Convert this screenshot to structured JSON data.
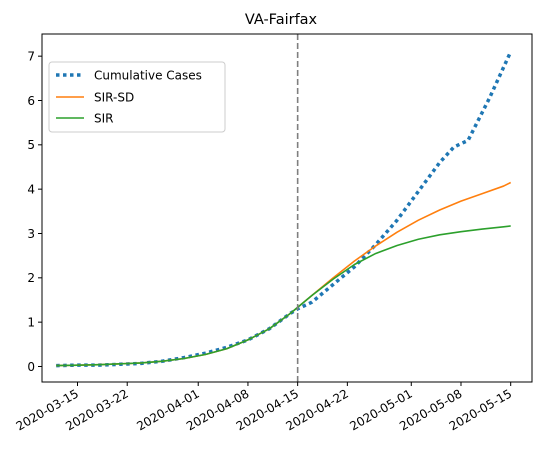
{
  "chart_data": {
    "type": "line",
    "title": "VA-Fairfax",
    "xlabel": "",
    "ylabel": "",
    "x_tick_labels": [
      "2020-03-15",
      "2020-03-22",
      "2020-04-01",
      "2020-04-08",
      "2020-04-15",
      "2020-04-22",
      "2020-05-01",
      "2020-05-08",
      "2020-05-15"
    ],
    "y_ticks": [
      0,
      1,
      2,
      3,
      4,
      5,
      6,
      7
    ],
    "xlim": [
      "2020-03-10",
      "2020-05-18"
    ],
    "ylim": [
      -0.35,
      7.5
    ],
    "grid": false,
    "legend": "top-left",
    "vline": {
      "x": "2020-04-15",
      "style": "dashed",
      "color": "#7f7f7f"
    },
    "series": [
      {
        "name": "Cumulative Cases",
        "style": "dotted",
        "color": "#1f77b4",
        "points": [
          [
            "2020-03-12",
            0.02
          ],
          [
            "2020-03-15",
            0.03
          ],
          [
            "2020-03-18",
            0.03
          ],
          [
            "2020-03-21",
            0.05
          ],
          [
            "2020-03-24",
            0.07
          ],
          [
            "2020-03-27",
            0.12
          ],
          [
            "2020-03-30",
            0.2
          ],
          [
            "2020-04-02",
            0.3
          ],
          [
            "2020-04-05",
            0.43
          ],
          [
            "2020-04-08",
            0.6
          ],
          [
            "2020-04-11",
            0.85
          ],
          [
            "2020-04-14",
            1.2
          ],
          [
            "2020-04-15",
            1.3
          ],
          [
            "2020-04-17",
            1.45
          ],
          [
            "2020-04-20",
            1.85
          ],
          [
            "2020-04-23",
            2.25
          ],
          [
            "2020-04-26",
            2.75
          ],
          [
            "2020-04-29",
            3.3
          ],
          [
            "2020-05-02",
            3.95
          ],
          [
            "2020-05-05",
            4.6
          ],
          [
            "2020-05-07",
            4.95
          ],
          [
            "2020-05-09",
            5.1
          ],
          [
            "2020-05-12",
            6.05
          ],
          [
            "2020-05-15",
            7.1
          ]
        ]
      },
      {
        "name": "SIR-SD",
        "style": "solid",
        "color": "#ff7f0e",
        "points": [
          [
            "2020-03-12",
            0.02
          ],
          [
            "2020-03-15",
            0.03
          ],
          [
            "2020-03-18",
            0.04
          ],
          [
            "2020-03-21",
            0.06
          ],
          [
            "2020-03-24",
            0.08
          ],
          [
            "2020-03-27",
            0.12
          ],
          [
            "2020-03-30",
            0.18
          ],
          [
            "2020-04-02",
            0.27
          ],
          [
            "2020-04-05",
            0.4
          ],
          [
            "2020-04-08",
            0.6
          ],
          [
            "2020-04-11",
            0.85
          ],
          [
            "2020-04-14",
            1.2
          ],
          [
            "2020-04-17",
            1.6
          ],
          [
            "2020-04-20",
            2.0
          ],
          [
            "2020-04-23",
            2.38
          ],
          [
            "2020-04-26",
            2.72
          ],
          [
            "2020-04-29",
            3.03
          ],
          [
            "2020-05-02",
            3.3
          ],
          [
            "2020-05-05",
            3.53
          ],
          [
            "2020-05-08",
            3.73
          ],
          [
            "2020-05-11",
            3.9
          ],
          [
            "2020-05-14",
            4.07
          ],
          [
            "2020-05-15",
            4.15
          ]
        ]
      },
      {
        "name": "SIR",
        "style": "solid",
        "color": "#2ca02c",
        "points": [
          [
            "2020-03-12",
            0.02
          ],
          [
            "2020-03-15",
            0.03
          ],
          [
            "2020-03-18",
            0.04
          ],
          [
            "2020-03-21",
            0.06
          ],
          [
            "2020-03-24",
            0.08
          ],
          [
            "2020-03-27",
            0.12
          ],
          [
            "2020-03-30",
            0.18
          ],
          [
            "2020-04-02",
            0.27
          ],
          [
            "2020-04-05",
            0.4
          ],
          [
            "2020-04-08",
            0.6
          ],
          [
            "2020-04-11",
            0.85
          ],
          [
            "2020-04-14",
            1.2
          ],
          [
            "2020-04-17",
            1.6
          ],
          [
            "2020-04-20",
            1.97
          ],
          [
            "2020-04-23",
            2.3
          ],
          [
            "2020-04-26",
            2.55
          ],
          [
            "2020-04-29",
            2.73
          ],
          [
            "2020-05-02",
            2.87
          ],
          [
            "2020-05-05",
            2.97
          ],
          [
            "2020-05-08",
            3.04
          ],
          [
            "2020-05-11",
            3.1
          ],
          [
            "2020-05-14",
            3.15
          ],
          [
            "2020-05-15",
            3.17
          ]
        ]
      }
    ]
  }
}
